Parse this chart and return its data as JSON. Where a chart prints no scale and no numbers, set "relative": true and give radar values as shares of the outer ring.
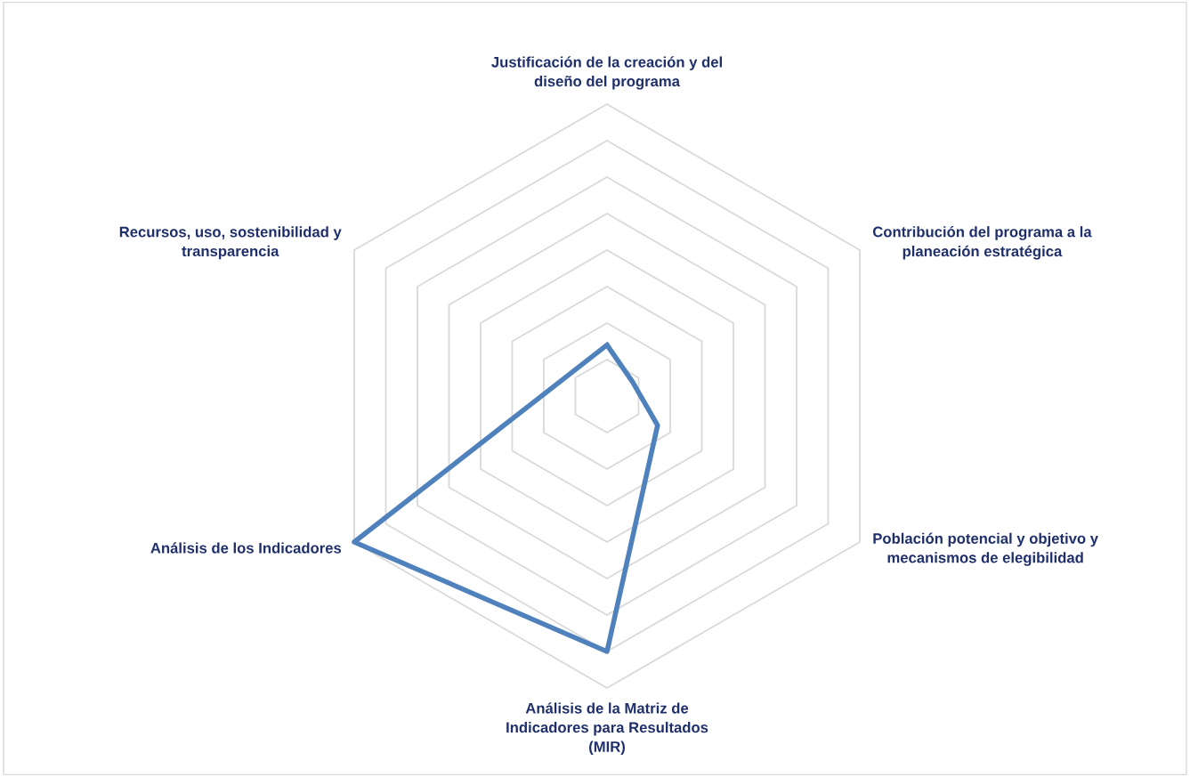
{
  "chart_data": {
    "type": "radar",
    "relative": true,
    "categories": [
      "Justificación de la creación y del\ndiseño del programa",
      "Contribución del programa a la\nplaneación estratégica",
      "Población potencial y objetivo y\nmecanismos de elegibilidad",
      "Análisis de la Matriz de\nIndicadores para Resultados\n(MIR)",
      "Análisis de los Indicadores",
      "Recursos, uso, sostenibilidad y\ntransparencia"
    ],
    "series": [
      {
        "color": "#4f81bd",
        "values": [
          0.175,
          0.1,
          0.2,
          0.875,
          1.0,
          null
        ]
      }
    ],
    "grid": true,
    "marker": "none",
    "line_style": "solid"
  }
}
